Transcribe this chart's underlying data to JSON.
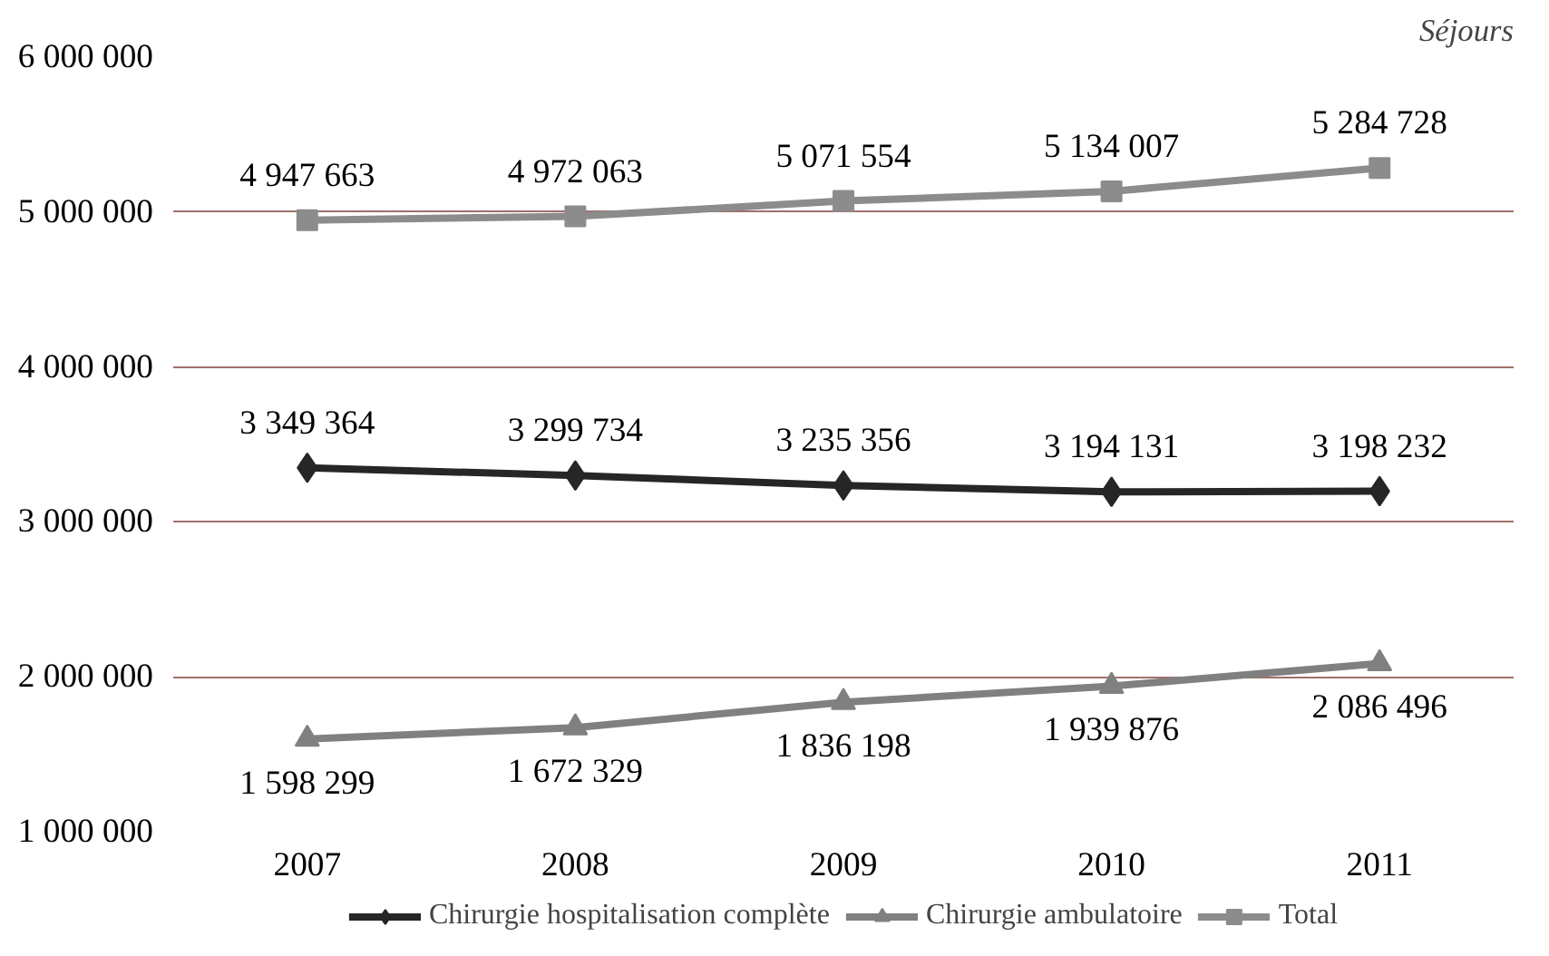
{
  "chart_data": {
    "type": "line",
    "annotations": [
      "Séjours"
    ],
    "categories": [
      "2007",
      "2008",
      "2009",
      "2010",
      "2011"
    ],
    "ylim": [
      1000000,
      6000000
    ],
    "yticks": [
      {
        "value": 1000000,
        "label": "1 000 000"
      },
      {
        "value": 2000000,
        "label": "2 000 000"
      },
      {
        "value": 3000000,
        "label": "3 000 000"
      },
      {
        "value": 4000000,
        "label": "4 000 000"
      },
      {
        "value": 5000000,
        "label": "5 000 000"
      },
      {
        "value": 6000000,
        "label": "6 000 000"
      }
    ],
    "grid": "y",
    "legend": "bottom",
    "series": [
      {
        "name": "Chirurgie hospitalisation complète",
        "color": "#262626",
        "marker": "diamond",
        "values": [
          3349364,
          3299734,
          3235356,
          3194131,
          3198232
        ],
        "value_labels": [
          "3 349 364",
          "3 299 734",
          "3 235 356",
          "3 194 131",
          "3 198 232"
        ]
      },
      {
        "name": "Chirurgie ambulatoire",
        "color": "#808080",
        "marker": "triangle",
        "values": [
          1598299,
          1672329,
          1836198,
          1939876,
          2086496
        ],
        "value_labels": [
          "1 598 299",
          "1 672 329",
          "1 836 198",
          "1 939 876",
          "2 086 496"
        ]
      },
      {
        "name": "Total",
        "color": "#8c8c8c",
        "marker": "square",
        "values": [
          4947663,
          4972063,
          5071554,
          5134007,
          5284728
        ],
        "value_labels": [
          "4 947 663",
          "4 972 063",
          "5 071 554",
          "5 134 007",
          "5 284 728"
        ]
      }
    ]
  }
}
